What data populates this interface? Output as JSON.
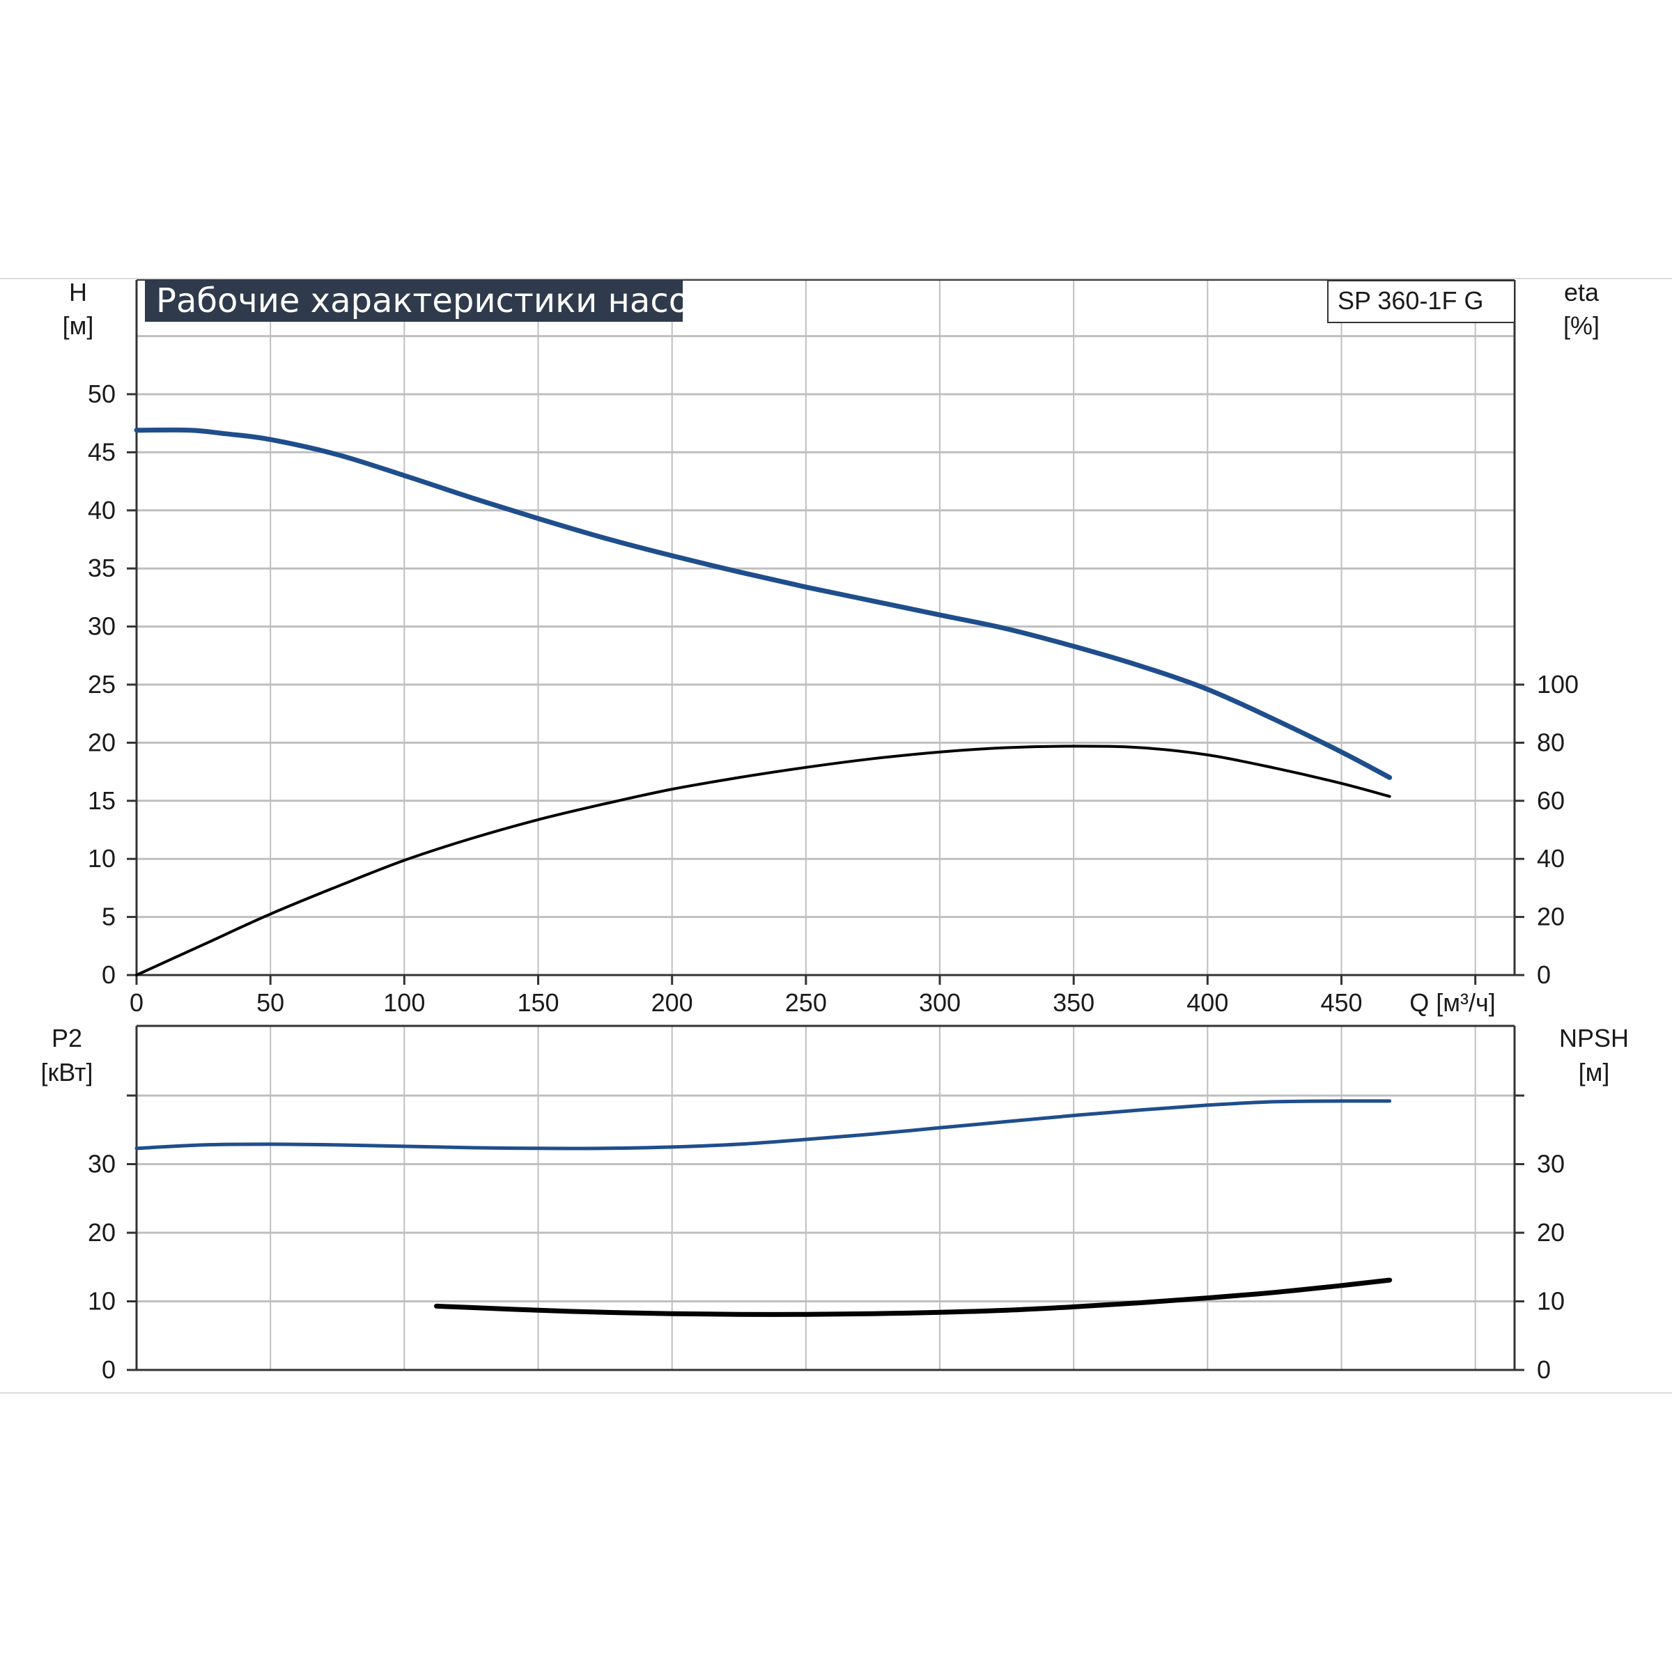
{
  "header": {
    "title": "Рабочие характеристики насоса",
    "model": "SP 360-1F G"
  },
  "colors": {
    "blue_curve": "#1f4e8c",
    "black_curve": "#000000",
    "grid": "#bfbfbf",
    "title_bg": "#2f3b4c",
    "axis": "#333333"
  },
  "chart_data": [
    {
      "type": "line",
      "panel": "top",
      "title": "Рабочие характеристики насоса",
      "xlabel": "Q [м³/ч]",
      "ylabel_left": "H\n[м]",
      "ylabel_right": "eta\n[%]",
      "ylabel_left_line1": "H",
      "ylabel_left_line2": "[м]",
      "ylabel_right_line1": "eta",
      "ylabel_right_line2": "[%]",
      "xlim": [
        0,
        515
      ],
      "ylim_left": [
        0,
        55
      ],
      "ylim_right": [
        0,
        125
      ],
      "x_ticks": [
        0,
        50,
        100,
        150,
        200,
        250,
        300,
        350,
        400,
        450
      ],
      "y_ticks_left": [
        0,
        5,
        10,
        15,
        20,
        25,
        30,
        35,
        40,
        45,
        50
      ],
      "y_ticks_right": [
        0,
        20,
        40,
        60,
        80,
        100
      ],
      "grid": true,
      "series": [
        {
          "axis": "left",
          "color": "#1f4e8c",
          "x": [
            0,
            20,
            33,
            50,
            75,
            100,
            125,
            150,
            175,
            200,
            225,
            250,
            275,
            300,
            325,
            350,
            375,
            400,
            425,
            450,
            468
          ],
          "y": [
            46.9,
            46.9,
            46.6,
            46.1,
            44.8,
            43.0,
            41.1,
            39.3,
            37.6,
            36.1,
            34.7,
            33.4,
            32.2,
            31.0,
            29.8,
            28.3,
            26.6,
            24.6,
            22.0,
            19.2,
            17.0
          ]
        },
        {
          "axis": "right",
          "color": "#000000",
          "x": [
            0,
            25,
            50,
            75,
            100,
            125,
            150,
            175,
            200,
            225,
            250,
            275,
            300,
            325,
            350,
            375,
            400,
            425,
            450,
            468
          ],
          "y": [
            0,
            10.5,
            21,
            30.5,
            39.5,
            47,
            53.5,
            59,
            64,
            68,
            71.5,
            74.5,
            76.8,
            78.3,
            78.8,
            78.3,
            75.8,
            71.3,
            66,
            61.5
          ]
        }
      ]
    },
    {
      "type": "line",
      "panel": "bottom",
      "ylabel_left": "P2\n[кВт]",
      "ylabel_right": "NPSH\n[м]",
      "ylabel_left_line1": "P2",
      "ylabel_left_line2": "[кВт]",
      "ylabel_right_line1": "NPSH",
      "ylabel_right_line2": "[м]",
      "xlim": [
        0,
        515
      ],
      "ylim_left": [
        0,
        50
      ],
      "ylim_right": [
        0,
        50
      ],
      "y_ticks_left": [
        0,
        10,
        20,
        30
      ],
      "y_ticks_right": [
        0,
        10,
        20,
        30
      ],
      "grid": true,
      "series": [
        {
          "axis": "left",
          "color": "#1f4e8c",
          "x": [
            0,
            25,
            50,
            75,
            100,
            125,
            150,
            175,
            200,
            225,
            250,
            275,
            300,
            325,
            350,
            375,
            400,
            425,
            450,
            468
          ],
          "y": [
            32.3,
            32.8,
            32.9,
            32.8,
            32.6,
            32.4,
            32.3,
            32.3,
            32.5,
            32.9,
            33.6,
            34.4,
            35.3,
            36.2,
            37.1,
            37.9,
            38.6,
            39.1,
            39.2,
            39.2
          ]
        },
        {
          "axis": "right",
          "color": "#000000",
          "x": [
            112,
            125,
            150,
            175,
            200,
            225,
            250,
            275,
            300,
            325,
            350,
            375,
            400,
            425,
            450,
            468
          ],
          "y": [
            9.3,
            9.1,
            8.7,
            8.4,
            8.2,
            8.1,
            8.1,
            8.2,
            8.4,
            8.7,
            9.2,
            9.8,
            10.5,
            11.3,
            12.3,
            13.1
          ]
        }
      ]
    }
  ]
}
